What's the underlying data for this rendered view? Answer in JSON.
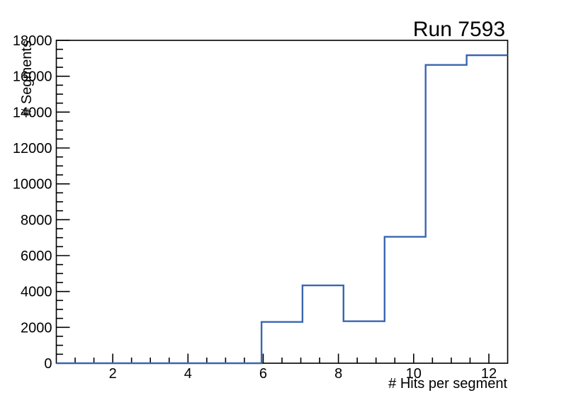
{
  "window": {
    "background_color": "#ffffff"
  },
  "chart_data": {
    "type": "step-histogram",
    "title": "Run 7593",
    "xlabel": "# Hits per segment",
    "ylabel": "# Segments",
    "xlim": [
      0.5,
      12.5
    ],
    "ylim": [
      0,
      18000
    ],
    "grid": false,
    "legend": null,
    "bin_edges": [
      0.5,
      1.591,
      2.682,
      3.773,
      4.864,
      5.955,
      7.045,
      8.136,
      9.227,
      10.318,
      11.409,
      12.5
    ],
    "counts": [
      0,
      0,
      0,
      0,
      0,
      2300,
      4340,
      2340,
      7050,
      16630,
      17170
    ],
    "x_axis": {
      "major_ticks": [
        2,
        4,
        6,
        8,
        10,
        12
      ],
      "tick_labels": [
        "2",
        "4",
        "6",
        "8",
        "10",
        "12"
      ],
      "minor_tick_step": 0.5
    },
    "y_axis": {
      "major_ticks": [
        0,
        2000,
        4000,
        6000,
        8000,
        10000,
        12000,
        14000,
        16000,
        18000
      ],
      "tick_labels": [
        "0",
        "2000",
        "4000",
        "6000",
        "8000",
        "10000",
        "12000",
        "14000",
        "16000",
        "18000"
      ],
      "minor_tick_step": 500
    },
    "colors": {
      "line": "#3a66b0",
      "axis": "#000000",
      "text": "#000000"
    }
  }
}
